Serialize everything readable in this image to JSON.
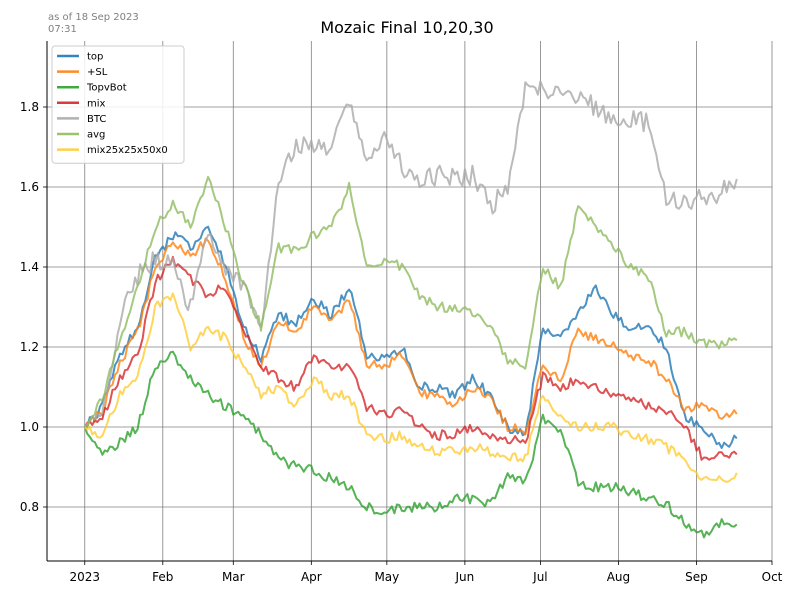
{
  "stamp": {
    "line1": "as of 18 Sep 2023",
    "line2": "07:31"
  },
  "chart_data": {
    "type": "line",
    "title": "Mozaic Final 10,20,30",
    "xlabel": "",
    "ylabel": "",
    "x_ticks": [
      "2023",
      "Feb",
      "Mar",
      "Apr",
      "May",
      "Jun",
      "Jul",
      "Aug",
      "Sep",
      "Oct"
    ],
    "x_tick_dates": [
      "2023-01-01",
      "2023-02-01",
      "2023-03-01",
      "2023-04-01",
      "2023-05-01",
      "2023-06-01",
      "2023-07-01",
      "2023-08-01",
      "2023-09-01",
      "2023-10-01"
    ],
    "xlim": [
      "2022-12-17",
      "2023-10-01"
    ],
    "ylim": [
      0.665,
      1.965
    ],
    "y_ticks": [
      0.8,
      1.0,
      1.2,
      1.4,
      1.6,
      1.8
    ],
    "y_tick_labels": [
      "0.8",
      "1.0",
      "1.2",
      "1.4",
      "1.6",
      "1.8"
    ],
    "grid": true,
    "legend_position": "top-left",
    "series": [
      {
        "name": "top",
        "color": "#1f77b4",
        "dates": [
          "2023-01-01",
          "2023-01-08",
          "2023-01-15",
          "2023-01-22",
          "2023-01-29",
          "2023-02-05",
          "2023-02-12",
          "2023-02-19",
          "2023-02-26",
          "2023-03-05",
          "2023-03-12",
          "2023-03-19",
          "2023-03-26",
          "2023-04-02",
          "2023-04-09",
          "2023-04-16",
          "2023-04-23",
          "2023-04-30",
          "2023-05-07",
          "2023-05-14",
          "2023-05-21",
          "2023-05-28",
          "2023-06-04",
          "2023-06-11",
          "2023-06-18",
          "2023-06-25",
          "2023-07-02",
          "2023-07-09",
          "2023-07-16",
          "2023-07-23",
          "2023-07-30",
          "2023-08-06",
          "2023-08-13",
          "2023-08-20",
          "2023-08-27",
          "2023-09-03",
          "2023-09-10",
          "2023-09-17"
        ],
        "values": [
          1.0,
          1.05,
          1.18,
          1.25,
          1.42,
          1.48,
          1.45,
          1.5,
          1.4,
          1.25,
          1.17,
          1.28,
          1.26,
          1.32,
          1.28,
          1.35,
          1.18,
          1.17,
          1.2,
          1.1,
          1.1,
          1.08,
          1.12,
          1.08,
          1.0,
          0.98,
          1.25,
          1.22,
          1.28,
          1.35,
          1.28,
          1.25,
          1.25,
          1.2,
          1.03,
          1.0,
          0.95,
          0.97
        ]
      },
      {
        "name": "+SL",
        "color": "#ff7f0e",
        "dates": [
          "2023-01-01",
          "2023-01-08",
          "2023-01-15",
          "2023-01-22",
          "2023-01-29",
          "2023-02-05",
          "2023-02-12",
          "2023-02-19",
          "2023-02-26",
          "2023-03-05",
          "2023-03-12",
          "2023-03-19",
          "2023-03-26",
          "2023-04-02",
          "2023-04-09",
          "2023-04-16",
          "2023-04-23",
          "2023-04-30",
          "2023-05-07",
          "2023-05-14",
          "2023-05-21",
          "2023-05-28",
          "2023-06-04",
          "2023-06-11",
          "2023-06-18",
          "2023-06-25",
          "2023-07-02",
          "2023-07-09",
          "2023-07-16",
          "2023-07-23",
          "2023-07-30",
          "2023-08-06",
          "2023-08-13",
          "2023-08-20",
          "2023-08-27",
          "2023-09-03",
          "2023-09-10",
          "2023-09-17"
        ],
        "values": [
          1.0,
          1.04,
          1.16,
          1.24,
          1.4,
          1.46,
          1.43,
          1.47,
          1.37,
          1.23,
          1.15,
          1.26,
          1.24,
          1.3,
          1.26,
          1.32,
          1.16,
          1.15,
          1.18,
          1.08,
          1.08,
          1.06,
          1.1,
          1.07,
          1.0,
          0.99,
          1.15,
          1.12,
          1.24,
          1.22,
          1.2,
          1.18,
          1.17,
          1.12,
          1.05,
          1.05,
          1.03,
          1.04
        ]
      },
      {
        "name": "TopvBot",
        "color": "#2ca02c",
        "dates": [
          "2023-01-01",
          "2023-01-08",
          "2023-01-15",
          "2023-01-22",
          "2023-01-29",
          "2023-02-05",
          "2023-02-12",
          "2023-02-19",
          "2023-02-26",
          "2023-03-05",
          "2023-03-12",
          "2023-03-19",
          "2023-03-26",
          "2023-04-02",
          "2023-04-09",
          "2023-04-16",
          "2023-04-23",
          "2023-04-30",
          "2023-05-07",
          "2023-05-14",
          "2023-05-21",
          "2023-05-28",
          "2023-06-04",
          "2023-06-11",
          "2023-06-18",
          "2023-06-25",
          "2023-07-02",
          "2023-07-09",
          "2023-07-16",
          "2023-07-23",
          "2023-07-30",
          "2023-08-06",
          "2023-08-13",
          "2023-08-20",
          "2023-08-27",
          "2023-09-03",
          "2023-09-10",
          "2023-09-17"
        ],
        "values": [
          1.0,
          0.93,
          0.96,
          1.0,
          1.15,
          1.18,
          1.12,
          1.08,
          1.05,
          1.03,
          0.98,
          0.92,
          0.9,
          0.89,
          0.87,
          0.85,
          0.8,
          0.79,
          0.8,
          0.8,
          0.8,
          0.82,
          0.82,
          0.81,
          0.88,
          0.86,
          1.02,
          0.99,
          0.86,
          0.85,
          0.85,
          0.84,
          0.82,
          0.81,
          0.76,
          0.73,
          0.76,
          0.75
        ]
      },
      {
        "name": "mix",
        "color": "#d62728",
        "dates": [
          "2023-01-01",
          "2023-01-08",
          "2023-01-15",
          "2023-01-22",
          "2023-01-29",
          "2023-02-05",
          "2023-02-12",
          "2023-02-19",
          "2023-02-26",
          "2023-03-05",
          "2023-03-12",
          "2023-03-19",
          "2023-03-26",
          "2023-04-02",
          "2023-04-09",
          "2023-04-16",
          "2023-04-23",
          "2023-04-30",
          "2023-05-07",
          "2023-05-14",
          "2023-05-21",
          "2023-05-28",
          "2023-06-04",
          "2023-06-11",
          "2023-06-18",
          "2023-06-25",
          "2023-07-02",
          "2023-07-09",
          "2023-07-16",
          "2023-07-23",
          "2023-07-30",
          "2023-08-06",
          "2023-08-13",
          "2023-08-20",
          "2023-08-27",
          "2023-09-03",
          "2023-09-10",
          "2023-09-17"
        ],
        "values": [
          1.0,
          1.03,
          1.12,
          1.18,
          1.36,
          1.42,
          1.37,
          1.33,
          1.35,
          1.25,
          1.15,
          1.12,
          1.1,
          1.18,
          1.14,
          1.16,
          1.05,
          1.03,
          1.05,
          1.0,
          0.98,
          0.98,
          1.0,
          0.98,
          0.97,
          0.96,
          1.13,
          1.1,
          1.12,
          1.1,
          1.08,
          1.07,
          1.05,
          1.04,
          1.0,
          0.93,
          0.93,
          0.93
        ]
      },
      {
        "name": "BTC",
        "color": "#a9a9a9",
        "dates": [
          "2023-01-01",
          "2023-01-08",
          "2023-01-15",
          "2023-01-22",
          "2023-01-29",
          "2023-02-05",
          "2023-02-12",
          "2023-02-19",
          "2023-02-26",
          "2023-03-05",
          "2023-03-12",
          "2023-03-19",
          "2023-03-26",
          "2023-04-02",
          "2023-04-09",
          "2023-04-16",
          "2023-04-23",
          "2023-04-30",
          "2023-05-07",
          "2023-05-14",
          "2023-05-21",
          "2023-05-28",
          "2023-06-04",
          "2023-06-11",
          "2023-06-18",
          "2023-06-25",
          "2023-07-02",
          "2023-07-09",
          "2023-07-16",
          "2023-07-23",
          "2023-07-30",
          "2023-08-06",
          "2023-08-13",
          "2023-08-20",
          "2023-08-27",
          "2023-09-03",
          "2023-09-10",
          "2023-09-17"
        ],
        "values": [
          1.0,
          1.04,
          1.27,
          1.38,
          1.42,
          1.4,
          1.3,
          1.48,
          1.4,
          1.36,
          1.23,
          1.62,
          1.7,
          1.7,
          1.7,
          1.82,
          1.66,
          1.72,
          1.65,
          1.62,
          1.63,
          1.62,
          1.63,
          1.55,
          1.6,
          1.84,
          1.85,
          1.83,
          1.83,
          1.8,
          1.76,
          1.77,
          1.76,
          1.57,
          1.57,
          1.57,
          1.58,
          1.62
        ]
      },
      {
        "name": "avg",
        "color": "#8fbc5e",
        "dates": [
          "2023-01-01",
          "2023-01-08",
          "2023-01-15",
          "2023-01-22",
          "2023-01-29",
          "2023-02-05",
          "2023-02-12",
          "2023-02-19",
          "2023-02-26",
          "2023-03-05",
          "2023-03-12",
          "2023-03-19",
          "2023-03-26",
          "2023-04-02",
          "2023-04-09",
          "2023-04-16",
          "2023-04-23",
          "2023-04-30",
          "2023-05-07",
          "2023-05-14",
          "2023-05-21",
          "2023-05-28",
          "2023-06-04",
          "2023-06-11",
          "2023-06-18",
          "2023-06-25",
          "2023-07-02",
          "2023-07-09",
          "2023-07-16",
          "2023-07-23",
          "2023-07-30",
          "2023-08-06",
          "2023-08-13",
          "2023-08-20",
          "2023-08-27",
          "2023-09-03",
          "2023-09-10",
          "2023-09-17"
        ],
        "values": [
          1.0,
          1.07,
          1.22,
          1.35,
          1.5,
          1.56,
          1.5,
          1.62,
          1.5,
          1.36,
          1.25,
          1.45,
          1.44,
          1.48,
          1.5,
          1.6,
          1.4,
          1.42,
          1.4,
          1.33,
          1.3,
          1.3,
          1.29,
          1.25,
          1.17,
          1.15,
          1.4,
          1.35,
          1.55,
          1.5,
          1.45,
          1.4,
          1.37,
          1.23,
          1.24,
          1.21,
          1.2,
          1.22
        ]
      },
      {
        "name": "mix25x25x50x0",
        "color": "#ffcc33",
        "dates": [
          "2023-01-01",
          "2023-01-08",
          "2023-01-15",
          "2023-01-22",
          "2023-01-29",
          "2023-02-05",
          "2023-02-12",
          "2023-02-19",
          "2023-02-26",
          "2023-03-05",
          "2023-03-12",
          "2023-03-19",
          "2023-03-26",
          "2023-04-02",
          "2023-04-09",
          "2023-04-16",
          "2023-04-23",
          "2023-04-30",
          "2023-05-07",
          "2023-05-14",
          "2023-05-21",
          "2023-05-28",
          "2023-06-04",
          "2023-06-11",
          "2023-06-18",
          "2023-06-25",
          "2023-07-02",
          "2023-07-09",
          "2023-07-16",
          "2023-07-23",
          "2023-07-30",
          "2023-08-06",
          "2023-08-13",
          "2023-08-20",
          "2023-08-27",
          "2023-09-03",
          "2023-09-10",
          "2023-09-17"
        ],
        "values": [
          1.0,
          0.98,
          1.08,
          1.12,
          1.3,
          1.33,
          1.2,
          1.25,
          1.22,
          1.15,
          1.08,
          1.1,
          1.05,
          1.12,
          1.08,
          1.08,
          0.98,
          0.97,
          0.98,
          0.95,
          0.94,
          0.94,
          0.95,
          0.94,
          0.93,
          0.92,
          1.08,
          1.03,
          1.0,
          1.0,
          1.0,
          0.98,
          0.97,
          0.95,
          0.92,
          0.87,
          0.87,
          0.88
        ]
      }
    ]
  }
}
